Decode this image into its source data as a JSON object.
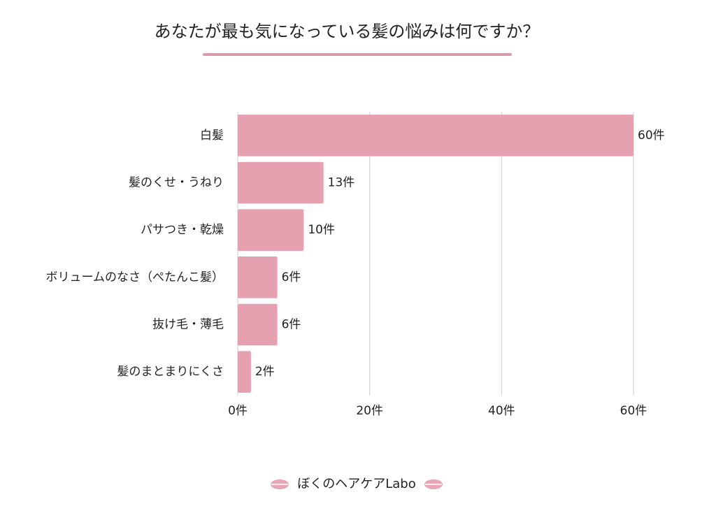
{
  "chart_data": {
    "type": "bar",
    "orientation": "horizontal",
    "title": "あなたが最も気になっている髪の悩みは何ですか？",
    "categories": [
      "白髪",
      "髪のくせ・うねり",
      "パサつき・乾燥",
      "ボリュームのなさ（ぺたんこ髪）",
      "抜け毛・薄毛",
      "髪のまとまりにくさ"
    ],
    "values": [
      60,
      13,
      10,
      6,
      6,
      2
    ],
    "value_labels": [
      "60件",
      "13件",
      "10件",
      "6件",
      "6件",
      "2件"
    ],
    "color": "#e6a1b1",
    "xlim": [
      0,
      60
    ],
    "xticks": [
      {
        "value": 0,
        "label": "0件"
      },
      {
        "value": 20,
        "label": "20件"
      },
      {
        "value": 40,
        "label": "40件"
      },
      {
        "value": 60,
        "label": "60件"
      }
    ],
    "grid": true
  },
  "footer": "ぼくのヘアケアLabo"
}
